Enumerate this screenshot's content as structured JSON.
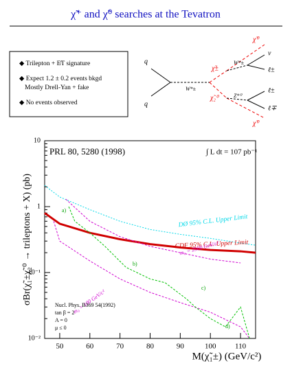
{
  "header": {
    "title": "χ̃⁺ and χ̃⁰ searches at the Tevatron"
  },
  "bullets": [
    "Trilepton + E̸T signature",
    "Expect 1.2 ± 0.2 events bkgd",
    "Mostly Drell-Yan + fake",
    "No events observed"
  ],
  "diagram": {
    "labels": [
      "q",
      "q",
      "W*±",
      "χ̃±",
      "χ̃₂⁰",
      "χ̃⁰",
      "ν",
      "ℓ±",
      "W*±",
      "Z*⁰",
      "ℓ±",
      "ℓ∓",
      "χ̃⁰"
    ]
  },
  "chart_data": {
    "type": "line",
    "ylog": true,
    "x_label": "M(χ̃₁±) (GeV/c²)",
    "y_label": "σBr(χ̃₁±χ̃₂⁰ → trileptons + X) (pb)",
    "xlim": [
      45,
      115
    ],
    "xticks": [
      50,
      60,
      70,
      80,
      90,
      100,
      110
    ],
    "ylim": [
      0.01,
      10
    ],
    "yticks": [
      {
        "value": 0.01,
        "label": "10⁻²"
      },
      {
        "value": 0.1,
        "label": "10⁻¹"
      },
      1,
      10
    ],
    "annotations": [
      "PRL 80, 5280 (1998)",
      "∫ L dt = 107 pb⁻¹",
      "Nucl. Phys. B369 54(1992)",
      "tan β = 2",
      "A = 0",
      "μ ≤ 0",
      "a)",
      "b)",
      "c)",
      "d)"
    ],
    "series": [
      {
        "name": "DØ 95% C.L. Upper Limit",
        "color": "#00d8e8",
        "dash": "2,2",
        "x": [
          45,
          50,
          60,
          70,
          80,
          90,
          100,
          110,
          115
        ],
        "values": [
          2.1,
          1.4,
          0.9,
          0.6,
          0.45,
          0.38,
          0.33,
          0.28,
          0.26
        ]
      },
      {
        "name": "CDF 95% C.L. Upper Limit",
        "color": "#d00000",
        "x": [
          45,
          50,
          60,
          70,
          80,
          90,
          100,
          110,
          115
        ],
        "values": [
          0.8,
          0.55,
          0.4,
          0.32,
          0.27,
          0.24,
          0.22,
          0.21,
          0.2
        ]
      },
      {
        "name": "m₀ = 2500 GeV/c²",
        "color": "#d000d0",
        "dash": "3,2",
        "x": [
          52,
          60,
          70,
          80,
          90,
          100,
          110
        ],
        "values": [
          1.3,
          0.6,
          0.35,
          0.25,
          0.2,
          0.16,
          0.14
        ]
      },
      {
        "name": "m₀ = 100 GeV/c²",
        "color": "#d000d0",
        "dash": "3,2",
        "x": [
          48,
          50,
          60,
          70,
          80,
          90,
          100,
          110,
          113
        ],
        "values": [
          0.6,
          0.3,
          0.15,
          0.08,
          0.05,
          0.035,
          0.025,
          0.015,
          0.01
        ]
      },
      {
        "color": "#00c000",
        "dash": "3,2",
        "x": [
          53,
          55,
          60,
          65,
          72,
          80,
          85,
          92,
          95,
          100,
          105,
          110,
          113
        ],
        "values": [
          1.0,
          0.6,
          0.4,
          0.25,
          0.12,
          0.08,
          0.07,
          0.04,
          0.03,
          0.02,
          0.015,
          0.03,
          0.01
        ]
      }
    ]
  }
}
